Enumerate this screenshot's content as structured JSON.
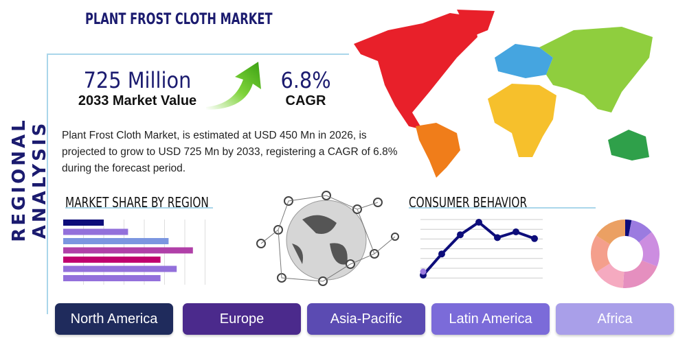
{
  "title": "PLANT FROST CLOTH MARKET",
  "side_title": "REGIONAL ANALYSIS",
  "market_value": "725 Million",
  "market_value_label": "2033 Market Value",
  "cagr": "6.8%",
  "cagr_label": "CAGR",
  "description": "Plant Frost Cloth Market, is estimated at USD 450 Mn in 2026, is projected to grow to USD 725 Mn by 2033, registering a CAGR of 6.8% during the forecast period.",
  "market_share_title": "MARKET SHARE BY REGION",
  "consumer_title": "CONSUMER BEHAVIOR",
  "share_bars": [
    {
      "value": 2,
      "color": "#0d0d7a"
    },
    {
      "value": 3.2,
      "color": "#9370db"
    },
    {
      "value": 5.2,
      "color": "#7b96e0"
    },
    {
      "value": 6.4,
      "color": "#b040a8"
    },
    {
      "value": 4.8,
      "color": "#c0006e"
    },
    {
      "value": 5.6,
      "color": "#9370db"
    },
    {
      "value": 4.8,
      "color": "#9370db"
    }
  ],
  "behavior_line": [
    1,
    3.2,
    5.2,
    6.5,
    4.9,
    5.5,
    4.8
  ],
  "donut": [
    {
      "value": 3,
      "color": "#0d0d7a"
    },
    {
      "value": 11,
      "color": "#9b7be0"
    },
    {
      "value": 17,
      "color": "#cc8de0"
    },
    {
      "value": 20,
      "color": "#e58fbf"
    },
    {
      "value": 15,
      "color": "#f5aac0"
    },
    {
      "value": 18,
      "color": "#f49f8c"
    },
    {
      "value": 16,
      "color": "#eba063"
    }
  ],
  "regions": [
    {
      "label": "North America",
      "color": "#1f2b5c"
    },
    {
      "label": "Europe",
      "color": "#4b2a8c"
    },
    {
      "label": "Asia-Pacific",
      "color": "#5b4bb2"
    },
    {
      "label": "Latin America",
      "color": "#7b6bd9"
    },
    {
      "label": "Africa",
      "color": "#a99fe9"
    }
  ]
}
